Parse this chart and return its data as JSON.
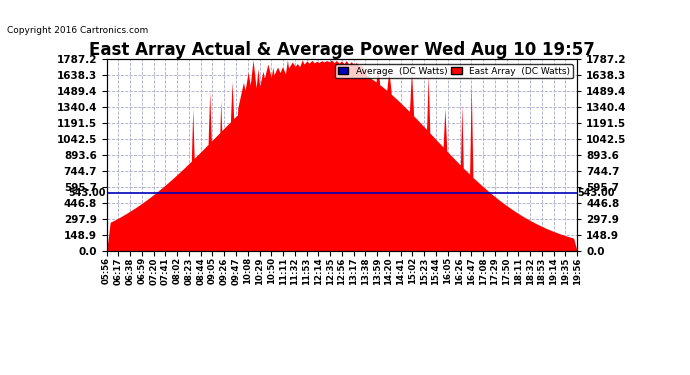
{
  "title": "East Array Actual & Average Power Wed Aug 10 19:57",
  "copyright": "Copyright 2016 Cartronics.com",
  "legend_labels": [
    "Average  (DC Watts)",
    "East Array  (DC Watts)"
  ],
  "legend_colors": [
    "#0000bb",
    "#ff0000"
  ],
  "background_color": "#ffffff",
  "plot_bg_color": "#ffffff",
  "grid_color": "#aaaacc",
  "ymax": 1787.2,
  "ymin": 0.0,
  "yticks": [
    0.0,
    148.9,
    297.9,
    446.8,
    595.7,
    744.7,
    893.6,
    1042.5,
    1191.5,
    1340.4,
    1489.4,
    1638.3,
    1787.2
  ],
  "ytick_labels": [
    "0.0",
    "148.9",
    "297.9",
    "446.8",
    "595.7",
    "744.7",
    "893.6",
    "1042.5",
    "1191.5",
    "1340.4",
    "1489.4",
    "1638.3",
    "1787.2"
  ],
  "hline_value": 543.0,
  "hline_label": "543.00",
  "hline_color": "#0000bb",
  "title_fontsize": 12,
  "east_color": "#ff0000",
  "east_fill": "#ff0000"
}
